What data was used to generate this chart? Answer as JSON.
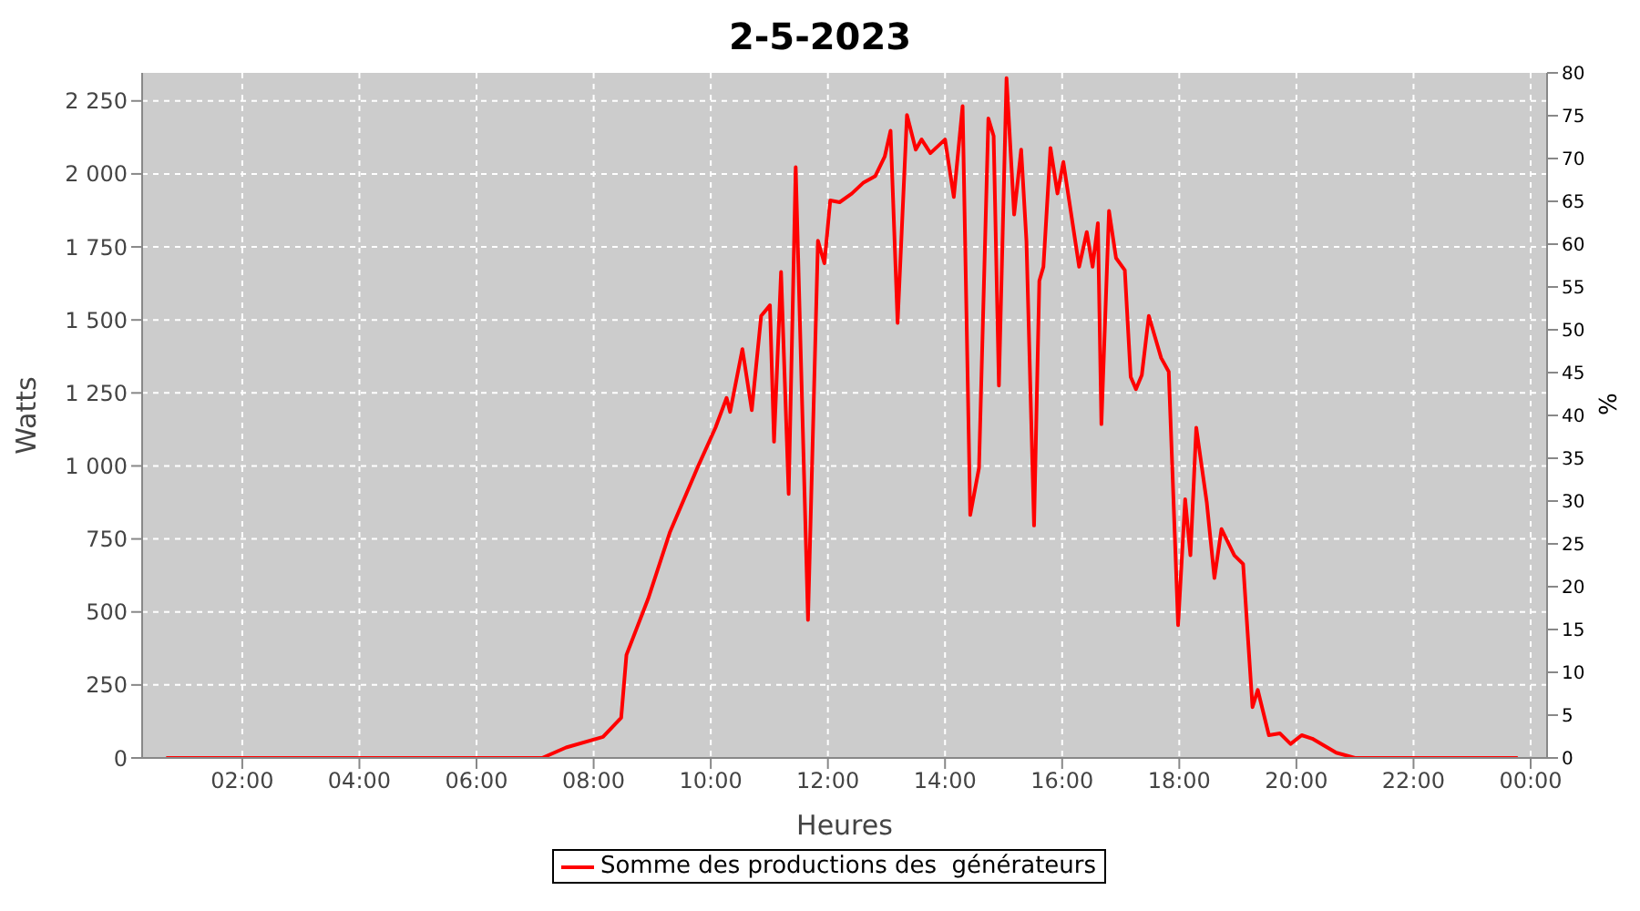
{
  "chart_data": {
    "type": "line",
    "title": "2-5-2023",
    "xlabel": "Heures",
    "ylabel": "Watts",
    "y2label": "%",
    "x": [
      0.7,
      7.12,
      7.53,
      8.16,
      8.47,
      8.56,
      8.93,
      9.3,
      9.77,
      10.08,
      10.27,
      10.33,
      10.54,
      10.7,
      10.86,
      11.01,
      11.08,
      11.2,
      11.33,
      11.45,
      11.66,
      11.83,
      11.94,
      12.04,
      12.2,
      12.41,
      12.6,
      12.81,
      12.97,
      13.07,
      13.19,
      13.35,
      13.5,
      13.6,
      13.75,
      14.0,
      14.15,
      14.3,
      14.43,
      14.58,
      14.74,
      14.83,
      14.92,
      15.05,
      15.18,
      15.3,
      15.39,
      15.52,
      15.61,
      15.68,
      15.8,
      15.92,
      16.02,
      16.29,
      16.42,
      16.52,
      16.61,
      16.67,
      16.8,
      16.92,
      17.07,
      17.17,
      17.26,
      17.36,
      17.48,
      17.69,
      17.82,
      17.98,
      18.1,
      18.19,
      18.29,
      18.47,
      18.6,
      18.72,
      18.94,
      19.09,
      19.25,
      19.34,
      19.53,
      19.72,
      19.9,
      20.09,
      20.27,
      20.68,
      21.0,
      23.78
    ],
    "series": [
      {
        "name": "Somme des productions des  générateurs",
        "color": "#ff0000",
        "values": [
          0,
          0,
          36,
          72,
          138,
          353,
          545,
          772,
          993,
          1131,
          1233,
          1185,
          1400,
          1191,
          1514,
          1550,
          1083,
          1664,
          904,
          2023,
          473,
          1771,
          1694,
          1909,
          1903,
          1933,
          1969,
          1993,
          2059,
          2148,
          1490,
          2202,
          2083,
          2118,
          2071,
          2118,
          1921,
          2232,
          832,
          993,
          2190,
          2130,
          1275,
          2328,
          1861,
          2083,
          1771,
          796,
          1634,
          1682,
          2089,
          1933,
          2041,
          1682,
          1801,
          1682,
          1831,
          1143,
          1873,
          1712,
          1670,
          1305,
          1263,
          1311,
          1514,
          1370,
          1323,
          455,
          886,
          694,
          1131,
          874,
          616,
          784,
          694,
          664,
          174,
          233,
          78,
          84,
          48,
          78,
          66,
          18,
          0,
          0
        ]
      }
    ],
    "xlim": [
      0.29,
      24.28
    ],
    "xticks": [
      {
        "value": 2,
        "label": "02:00"
      },
      {
        "value": 4,
        "label": "04:00"
      },
      {
        "value": 6,
        "label": "06:00"
      },
      {
        "value": 8,
        "label": "08:00"
      },
      {
        "value": 10,
        "label": "10:00"
      },
      {
        "value": 12,
        "label": "12:00"
      },
      {
        "value": 14,
        "label": "14:00"
      },
      {
        "value": 16,
        "label": "16:00"
      },
      {
        "value": 18,
        "label": "18:00"
      },
      {
        "value": 20,
        "label": "20:00"
      },
      {
        "value": 22,
        "label": "22:00"
      },
      {
        "value": 24,
        "label": "00:00"
      }
    ],
    "ylim": [
      0,
      2346
    ],
    "yticks": [
      0,
      250,
      500,
      750,
      {
        "value": 1000,
        "label": "1 000"
      },
      {
        "value": 1250,
        "label": "1 250"
      },
      {
        "value": 1500,
        "label": "1 500"
      },
      {
        "value": 1750,
        "label": "1 750"
      },
      {
        "value": 2000,
        "label": "2 000"
      },
      {
        "value": 2250,
        "label": "2 250"
      }
    ],
    "y2lim": [
      0,
      80
    ],
    "y2ticks": [
      0,
      5,
      10,
      15,
      20,
      25,
      30,
      35,
      40,
      45,
      50,
      55,
      60,
      65,
      70,
      75,
      80
    ],
    "grid": true,
    "legend": "bottom",
    "marker": "none",
    "line_style": "solid"
  }
}
